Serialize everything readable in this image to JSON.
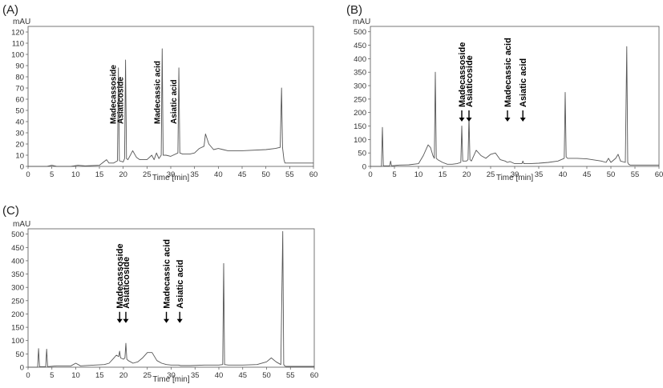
{
  "chart_data": [
    {
      "type": "line",
      "panel": "(A)",
      "ylabel": "mAU",
      "xlabel": "Time [min]",
      "xlim": [
        0,
        60
      ],
      "ylim": [
        0,
        125
      ],
      "xticks": [
        0,
        5,
        10,
        15,
        20,
        25,
        30,
        35,
        40,
        45,
        50,
        55,
        60
      ],
      "yticks": [
        0,
        10,
        20,
        30,
        40,
        50,
        60,
        70,
        80,
        90,
        100,
        110,
        120
      ],
      "series": [
        {
          "x": [
            0,
            4,
            5,
            6,
            9,
            10.5,
            12,
            15,
            16.5,
            17,
            18,
            18.8,
            19,
            19.2,
            20,
            20.3,
            20.5,
            20.7,
            21,
            22,
            22.8,
            23.5,
            25,
            26,
            26.5,
            27,
            27.5,
            28,
            28.2,
            28.4,
            28.6,
            29,
            30,
            31.5,
            31.7,
            31.9,
            32.5,
            34,
            35,
            36,
            37,
            37.3,
            38,
            39,
            40,
            41,
            42,
            45,
            50,
            52,
            53,
            53.3,
            53.5,
            53.8,
            54,
            55,
            57,
            60
          ],
          "y": [
            0,
            0,
            1,
            0,
            0,
            1,
            0.5,
            1,
            6,
            3,
            3,
            5,
            88,
            5,
            4,
            7,
            95,
            7,
            6,
            14,
            8,
            6,
            6,
            10,
            6,
            12,
            7,
            10,
            105,
            10,
            10,
            10,
            9,
            12,
            88,
            12,
            11,
            11,
            12,
            16,
            18,
            29,
            20,
            15,
            16,
            15,
            14,
            14,
            15,
            16,
            17,
            70,
            17,
            6,
            3,
            3,
            3,
            3
          ]
        }
      ],
      "annotations": [
        {
          "text": "Madecassoside",
          "x": 19
        },
        {
          "text": "Asiaticoside",
          "x": 20.5
        },
        {
          "text": "Madecassic acid",
          "x": 28.2
        },
        {
          "text": "Asiatic acid",
          "x": 31.7
        }
      ]
    },
    {
      "type": "line",
      "panel": "(B)",
      "ylabel": "mAU",
      "xlabel": "Time [min]",
      "xlim": [
        0,
        60
      ],
      "ylim": [
        0,
        520
      ],
      "xticks": [
        0,
        5,
        10,
        15,
        20,
        25,
        30,
        35,
        40,
        45,
        50,
        55,
        60
      ],
      "yticks": [
        0,
        50,
        100,
        150,
        200,
        250,
        300,
        350,
        400,
        450,
        500
      ],
      "series": [
        {
          "x": [
            0,
            2.3,
            2.5,
            2.7,
            4,
            4.2,
            4.4,
            6,
            8,
            10,
            11,
            12,
            12.5,
            13,
            13.3,
            13.5,
            13.7,
            14,
            15,
            16,
            17,
            18,
            18.8,
            19,
            19.2,
            20,
            20.3,
            20.5,
            20.7,
            21,
            22,
            23,
            24,
            25,
            26,
            27,
            28,
            28.5,
            29,
            30,
            31.5,
            31.7,
            31.9,
            33,
            35,
            37,
            39,
            40.3,
            40.5,
            40.7,
            41,
            43,
            45,
            48,
            49,
            49.5,
            50,
            51,
            51.5,
            52,
            53,
            53.3,
            53.5,
            53.7,
            54,
            55,
            57,
            60
          ],
          "y": [
            0,
            0,
            145,
            2,
            2,
            20,
            2,
            5,
            6,
            10,
            40,
            80,
            70,
            40,
            30,
            350,
            30,
            25,
            15,
            8,
            8,
            10,
            15,
            150,
            20,
            20,
            25,
            185,
            25,
            20,
            60,
            40,
            30,
            45,
            50,
            25,
            20,
            15,
            18,
            10,
            10,
            20,
            10,
            10,
            12,
            15,
            20,
            30,
            275,
            35,
            30,
            30,
            28,
            20,
            15,
            30,
            15,
            30,
            45,
            20,
            15,
            445,
            15,
            8,
            5,
            5,
            5,
            5
          ]
        }
      ],
      "annotations": [
        {
          "text": "Madecassoside",
          "x": 19
        },
        {
          "text": "Asiaticoside",
          "x": 20.5
        },
        {
          "text": "Madecassic acid",
          "x": 28.5
        },
        {
          "text": "Asiatic acid",
          "x": 31.7
        }
      ]
    },
    {
      "type": "line",
      "panel": "(C)",
      "ylabel": "mAU",
      "xlabel": "Time [min]",
      "xlim": [
        0,
        60
      ],
      "ylim": [
        0,
        520
      ],
      "xticks": [
        0,
        5,
        10,
        15,
        20,
        25,
        30,
        35,
        40,
        45,
        50,
        55,
        60
      ],
      "yticks": [
        0,
        50,
        100,
        150,
        200,
        250,
        300,
        350,
        400,
        450,
        500
      ],
      "series": [
        {
          "x": [
            0,
            2,
            2.2,
            2.4,
            3.7,
            3.9,
            4.1,
            6,
            9,
            10,
            11,
            14,
            16,
            17,
            18,
            18.5,
            19,
            19.2,
            19.4,
            20,
            20.3,
            20.5,
            20.7,
            21,
            22,
            23,
            24,
            25,
            26,
            26.5,
            27,
            28,
            29,
            30,
            31.5,
            32,
            34,
            37,
            40,
            40.8,
            41,
            41.2,
            42,
            45,
            48,
            50,
            51,
            52,
            53,
            53.4,
            53.6,
            53.8,
            54,
            55,
            57,
            60
          ],
          "y": [
            0,
            0,
            70,
            2,
            2,
            68,
            2,
            5,
            5,
            15,
            5,
            8,
            10,
            15,
            35,
            45,
            40,
            60,
            35,
            30,
            35,
            90,
            30,
            25,
            15,
            20,
            35,
            55,
            55,
            40,
            25,
            15,
            10,
            8,
            8,
            6,
            6,
            8,
            8,
            10,
            390,
            10,
            8,
            8,
            10,
            20,
            35,
            20,
            10,
            510,
            10,
            5,
            3,
            3,
            3,
            3
          ]
        }
      ],
      "annotations": [
        {
          "text": "Madecassoside",
          "x": 19.2
        },
        {
          "text": "Asiaticoside",
          "x": 20.5
        },
        {
          "text": "Madecassic acid",
          "x": 29
        },
        {
          "text": "Asiatic acid",
          "x": 31.8
        }
      ]
    }
  ]
}
